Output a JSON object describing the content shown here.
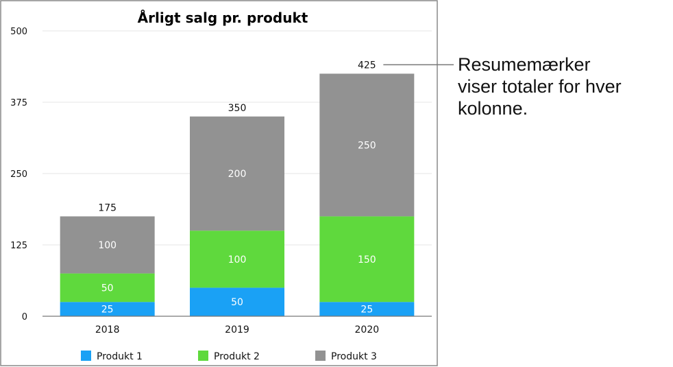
{
  "chart_data": {
    "type": "bar",
    "stacked": true,
    "title": "Årligt salg pr. produkt",
    "xlabel": "",
    "ylabel": "",
    "categories": [
      "2018",
      "2019",
      "2020"
    ],
    "series": [
      {
        "name": "Produkt 1",
        "color": "#1aa1f5",
        "values": [
          25,
          50,
          25
        ]
      },
      {
        "name": "Produkt 2",
        "color": "#5fd93d",
        "values": [
          50,
          100,
          150
        ]
      },
      {
        "name": "Produkt 3",
        "color": "#929292",
        "values": [
          100,
          200,
          250
        ]
      }
    ],
    "totals": [
      175,
      350,
      425
    ],
    "ylim": [
      0,
      500
    ],
    "yticks": [
      0,
      125,
      250,
      375,
      500
    ],
    "grid": true,
    "legend": "bottom"
  },
  "annotation": {
    "text": "Resumemærker\nviser totaler for hver\nkolonne."
  }
}
